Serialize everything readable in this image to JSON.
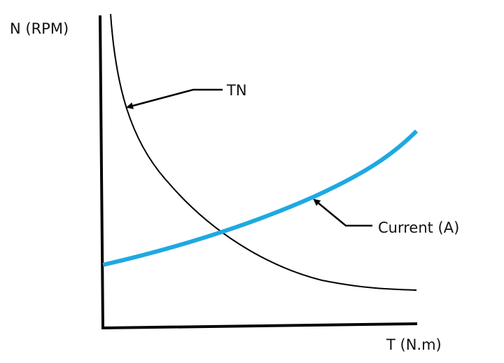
{
  "axes": {
    "y_label": "N (RPM)",
    "x_label": "T (N.m)"
  },
  "curves": [
    {
      "label": "TN"
    },
    {
      "label": "Current (A)"
    }
  ]
}
